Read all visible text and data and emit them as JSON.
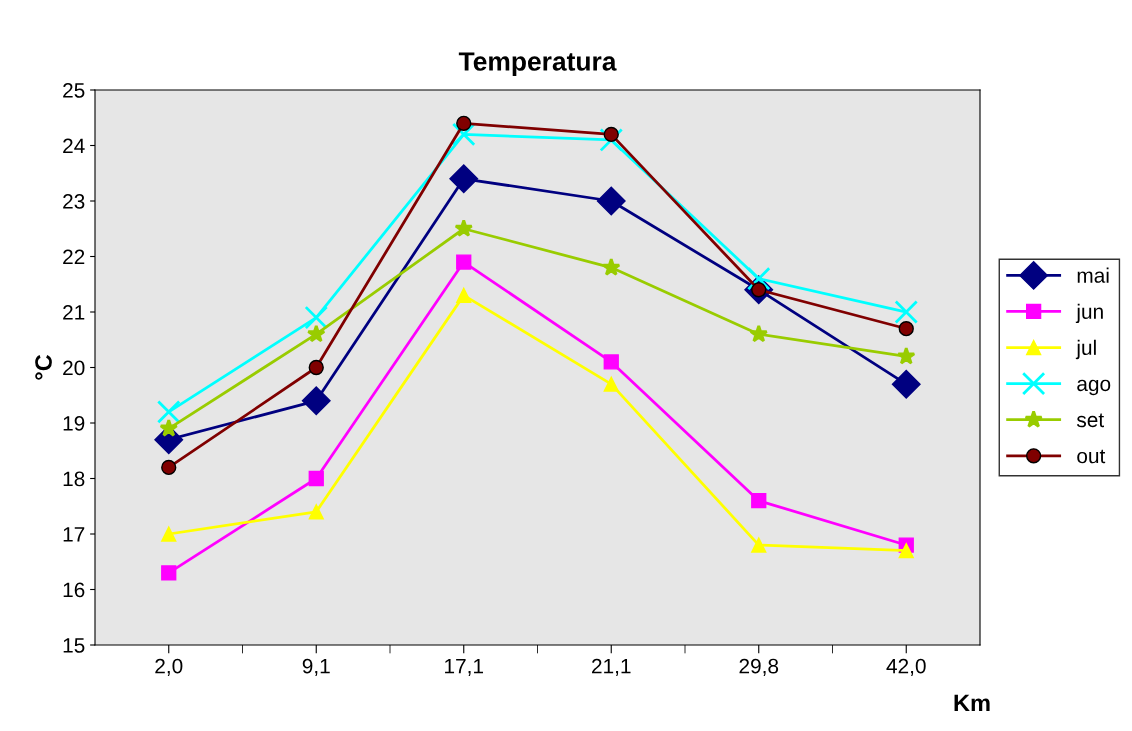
{
  "chart_data": {
    "type": "line",
    "title": "Temperatura",
    "xlabel": "Km",
    "ylabel": "°C",
    "categories": [
      "2,0",
      "9,1",
      "17,1",
      "21,1",
      "29,8",
      "42,0"
    ],
    "series": [
      {
        "name": "mai",
        "color": "#000080",
        "marker": "diamond",
        "values": [
          18.7,
          19.4,
          23.4,
          23.0,
          21.4,
          19.7
        ]
      },
      {
        "name": "jun",
        "color": "#ff00ff",
        "marker": "square",
        "values": [
          16.3,
          18.0,
          21.9,
          20.1,
          17.6,
          16.8
        ]
      },
      {
        "name": "jul",
        "color": "#ffff00",
        "marker": "triangle",
        "values": [
          17.0,
          17.4,
          21.3,
          19.7,
          16.8,
          16.7
        ]
      },
      {
        "name": "ago",
        "color": "#00ffff",
        "marker": "cross",
        "values": [
          19.2,
          20.9,
          24.2,
          24.1,
          21.6,
          21.0
        ]
      },
      {
        "name": "set",
        "color": "#99cc00",
        "marker": "star",
        "values": [
          18.9,
          20.6,
          22.5,
          21.8,
          20.6,
          20.2
        ]
      },
      {
        "name": "out",
        "color": "#800000",
        "marker": "circle",
        "values": [
          18.2,
          20.0,
          24.4,
          24.2,
          21.4,
          20.7
        ]
      }
    ],
    "ylim": [
      15,
      25
    ],
    "yticks": [
      15,
      16,
      17,
      18,
      19,
      20,
      21,
      22,
      23,
      24,
      25
    ],
    "grid": false,
    "legend": "right",
    "line_style": "solid"
  }
}
